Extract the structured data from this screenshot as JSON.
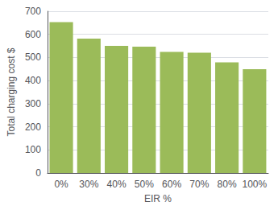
{
  "chart_data": {
    "type": "bar",
    "categories": [
      "0%",
      "30%",
      "40%",
      "50%",
      "60%",
      "70%",
      "80%",
      "100%"
    ],
    "values": [
      653,
      582,
      550,
      547,
      524,
      521,
      479,
      449
    ],
    "color": "#9BBB59",
    "xlabel": "EIR %",
    "ylabel": "Total charging cost $",
    "ylim": [
      0,
      700
    ],
    "yticks": [
      0,
      100,
      200,
      300,
      400,
      500,
      600,
      700
    ],
    "grid": true
  }
}
